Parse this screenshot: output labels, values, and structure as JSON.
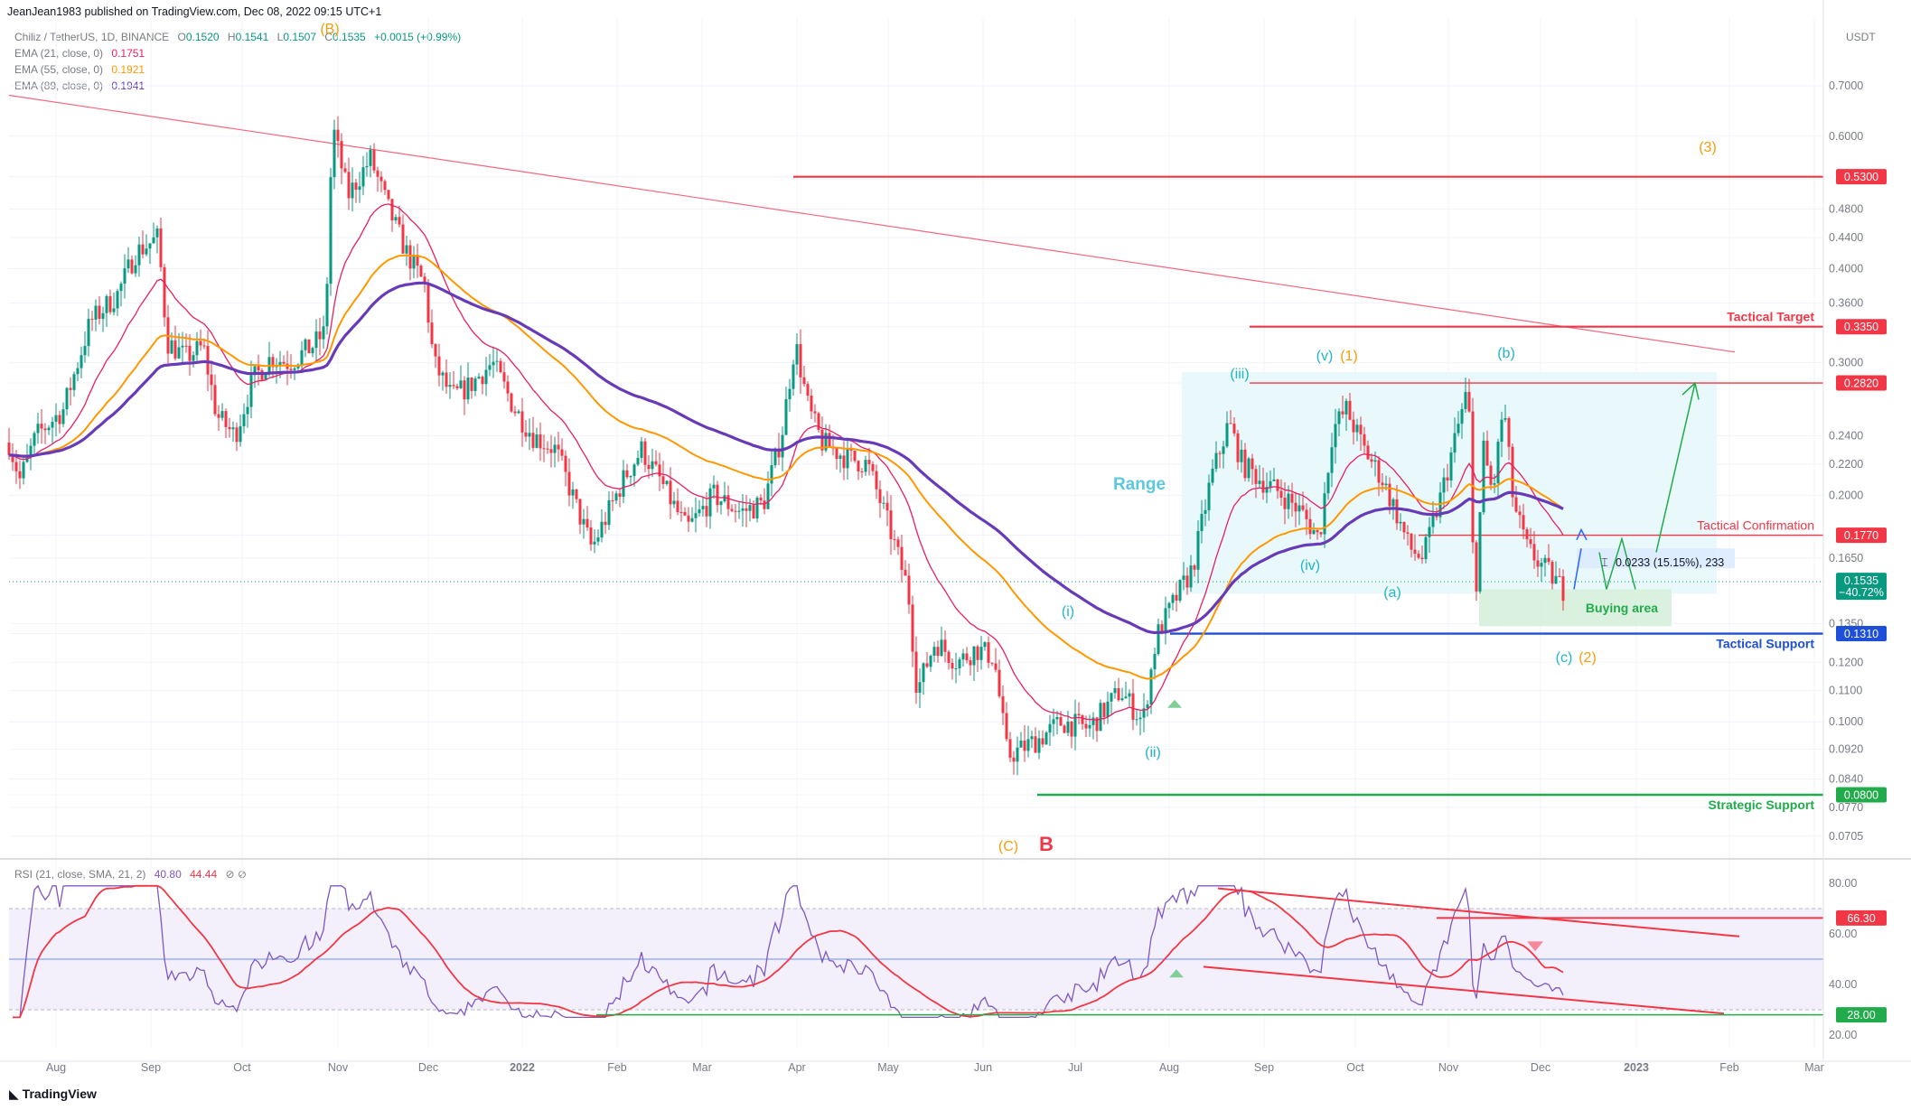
{
  "header": {
    "published": "JeanJean1983 published on TradingView.com, Dec 08, 2022 09:15 UTC+1",
    "symbol": "Chiliz / TetherUS, 1D, BINANCE",
    "ohlc": {
      "o_label": "O",
      "o": "0.1520",
      "h_label": "H",
      "h": "0.1541",
      "l_label": "L",
      "l": "0.1507",
      "c_label": "C",
      "c": "0.1535",
      "change": "+0.0015 (+0.99%)"
    },
    "ema21": {
      "label": "EMA (21, close, 0)",
      "value": "0.1751",
      "color": "#e91e63"
    },
    "ema55": {
      "label": "EMA (55, close, 0)",
      "value": "0.1921",
      "color": "#ff9800"
    },
    "ema89": {
      "label": "EMA (89, close, 0)",
      "value": "0.1941",
      "color": "#673ab7"
    },
    "currency": "USDT"
  },
  "rsi_legend": {
    "label": "RSI (21, close, SMA, 21, 2)",
    "value1": "40.80",
    "value2": "44.44",
    "value1_color": "#7e57c2",
    "value2_color": "#f23645"
  },
  "footer": {
    "brand": "TradingView"
  },
  "chart_data": {
    "type": "line",
    "title": "Chiliz / TetherUS, 1D, BINANCE",
    "price_axis": {
      "scale": "log",
      "ticks": [
        "0.7000",
        "0.6000",
        "0.5300",
        "0.4800",
        "0.4400",
        "0.4000",
        "0.3600",
        "0.3350",
        "0.3000",
        "0.2820",
        "0.2400",
        "0.2200",
        "0.2000",
        "0.1770",
        "0.1650",
        "0.1535",
        "0.1350",
        "0.1310",
        "0.1200",
        "0.1100",
        "0.1000",
        "0.0920",
        "0.0840",
        "0.0800",
        "0.0770",
        "0.0705"
      ]
    },
    "time_axis": {
      "ticks": [
        "Aug",
        "Sep",
        "Oct",
        "Nov",
        "Dec",
        "2022",
        "Feb",
        "Mar",
        "Apr",
        "May",
        "Jun",
        "Jul",
        "Aug",
        "Sep",
        "Oct",
        "Nov",
        "Dec",
        "2023",
        "Feb",
        "Mar"
      ]
    },
    "price_labels": [
      {
        "value": "0.5300",
        "color": "#f23645"
      },
      {
        "value": "0.3350",
        "color": "#f23645"
      },
      {
        "value": "0.2820",
        "color": "#f23645"
      },
      {
        "value": "0.1770",
        "color": "#f23645"
      },
      {
        "value": "0.1535",
        "sub": "−40.72%",
        "color": "#089981"
      },
      {
        "value": "0.1310",
        "color": "#1e4fd8"
      },
      {
        "value": "0.0800",
        "color": "#22ab4a"
      }
    ],
    "level_labels": [
      {
        "text": "Tactical Target",
        "color": "#f23645"
      },
      {
        "text": "Tactical Confirmation",
        "color": "#f23645"
      },
      {
        "text": "Tactical Support",
        "color": "#1e4fd8"
      },
      {
        "text": "Strategic Support",
        "color": "#22ab4a"
      }
    ],
    "wave_labels": [
      {
        "text": "(B)",
        "color": "#f59e0b"
      },
      {
        "text": "(3)",
        "color": "#f59e0b"
      },
      {
        "text": "(iii)",
        "color": "#1fb6c9"
      },
      {
        "text": "(v)",
        "color": "#1fb6c9"
      },
      {
        "text": "(1)",
        "color": "#f59e0b"
      },
      {
        "text": "(b)",
        "color": "#1fb6c9"
      },
      {
        "text": "(iv)",
        "color": "#1fb6c9"
      },
      {
        "text": "(a)",
        "color": "#1fb6c9"
      },
      {
        "text": "(i)",
        "color": "#1fb6c9"
      },
      {
        "text": "(ii)",
        "color": "#1fb6c9"
      },
      {
        "text": "(c)",
        "color": "#1fb6c9"
      },
      {
        "text": "(2)",
        "color": "#f59e0b"
      },
      {
        "text": "(C)",
        "color": "#f59e0b"
      },
      {
        "text": "B",
        "color": "#f23645"
      }
    ],
    "annotations": {
      "range": "Range",
      "buying_area": "Buying area",
      "measure": "0.0233 (15.15%), 233"
    },
    "series": [
      {
        "name": "EMA (21, close, 0)",
        "color": "#e91e63"
      },
      {
        "name": "EMA (55, close, 0)",
        "color": "#ff9800"
      },
      {
        "name": "EMA (89, close, 0)",
        "color": "#673ab7"
      }
    ],
    "rsi": {
      "axis_ticks": [
        "80.00",
        "60.00",
        "40.00",
        "20.00"
      ],
      "labels": [
        {
          "value": "66.30",
          "color": "#f23645"
        },
        {
          "value": "28.00",
          "color": "#22ab4a"
        }
      ],
      "bands": [
        70,
        50,
        30
      ]
    }
  }
}
